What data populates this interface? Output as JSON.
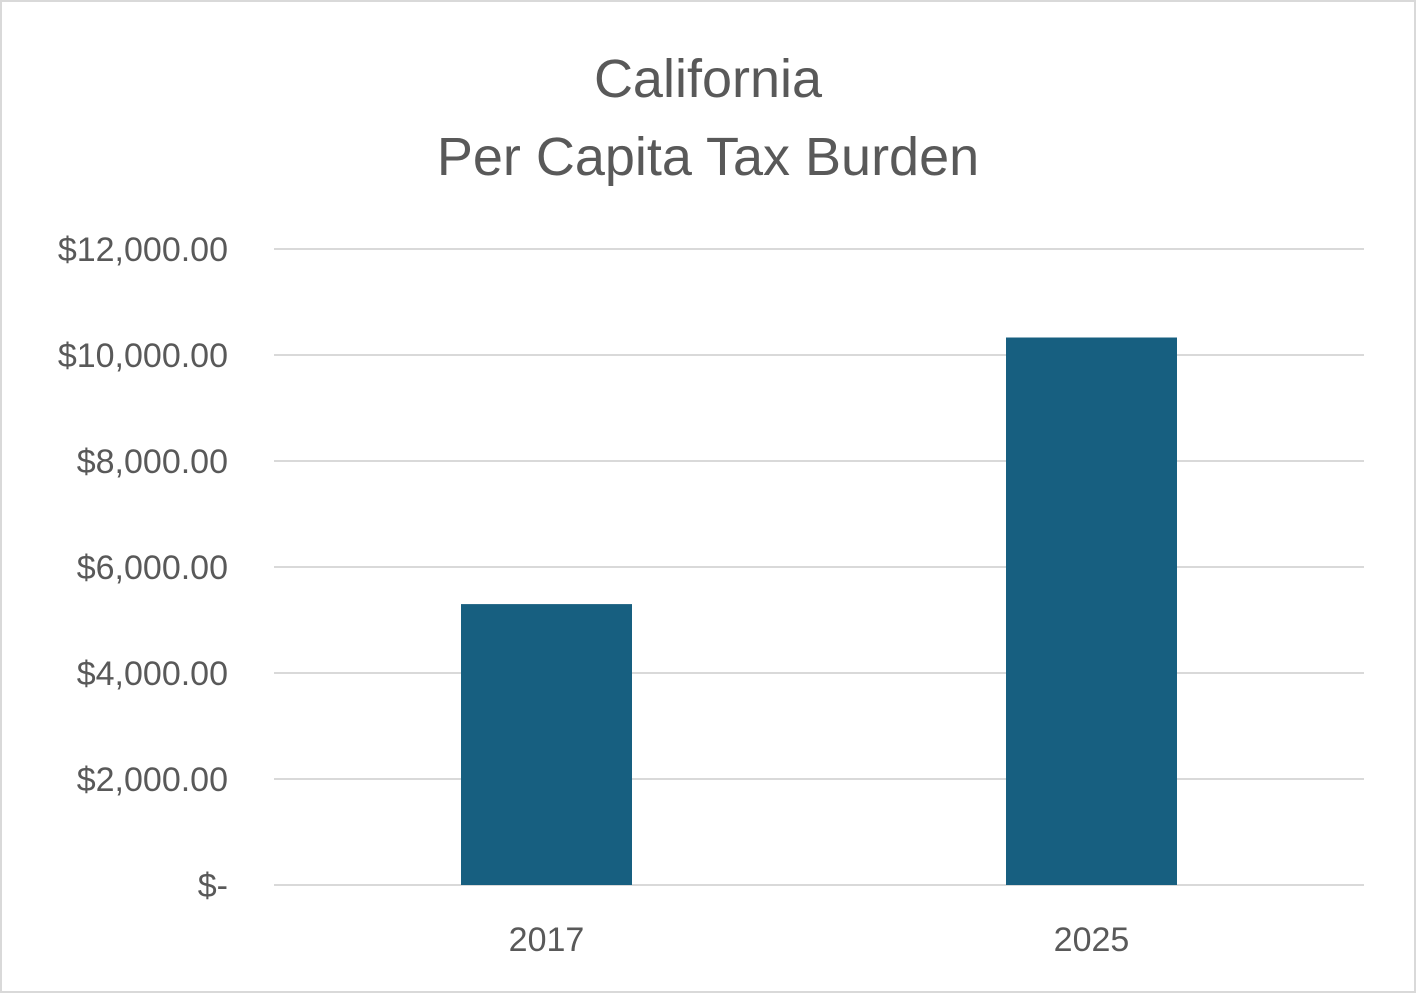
{
  "colors": {
    "bar": "#175f80",
    "grid": "#d9d9d9",
    "text": "#595959",
    "frame": "#d9d9d9"
  },
  "chart_data": {
    "type": "bar",
    "title_lines": [
      "California",
      "Per Capita Tax Burden"
    ],
    "categories": [
      "2017",
      "2025"
    ],
    "values": [
      5300,
      10330
    ],
    "ylim": [
      0,
      12000
    ],
    "yticks": [
      0,
      2000,
      4000,
      6000,
      8000,
      10000,
      12000
    ],
    "ytick_labels": [
      "$-",
      "$2,000.00",
      "$4,000.00",
      "$6,000.00",
      "$8,000.00",
      "$10,000.00",
      "$12,000.00"
    ],
    "xlabel": "",
    "ylabel": "",
    "grid": true,
    "legend": "none"
  }
}
